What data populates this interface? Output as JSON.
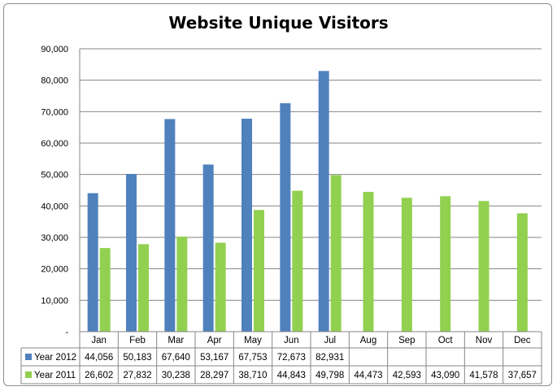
{
  "chart_data": {
    "type": "bar",
    "title": "Website Unique Visitors",
    "xlabel": "",
    "ylabel": "",
    "ylim": [
      0,
      90000
    ],
    "yticks": [
      0,
      10000,
      20000,
      30000,
      40000,
      50000,
      60000,
      70000,
      80000,
      90000
    ],
    "ytick_labels": [
      "-",
      "10,000",
      "20,000",
      "30,000",
      "40,000",
      "50,000",
      "60,000",
      "70,000",
      "80,000",
      "90,000"
    ],
    "grid": true,
    "legend": "data-table",
    "categories": [
      "Jan",
      "Feb",
      "Mar",
      "Apr",
      "May",
      "Jun",
      "Jul",
      "Aug",
      "Sep",
      "Oct",
      "Nov",
      "Dec"
    ],
    "series": [
      {
        "name": "Year 2012",
        "color": "#4f81bd",
        "values": [
          44056,
          50183,
          67640,
          53167,
          67753,
          72673,
          82931,
          null,
          null,
          null,
          null,
          null
        ],
        "labels": [
          "44,056",
          "50,183",
          "67,640",
          "53,167",
          "67,753",
          "72,673",
          "82,931",
          "",
          "",
          "",
          "",
          ""
        ]
      },
      {
        "name": "Year 2011",
        "color": "#92d050",
        "values": [
          26602,
          27832,
          30238,
          28297,
          38710,
          44843,
          49798,
          44473,
          42593,
          43090,
          41578,
          37657
        ],
        "labels": [
          "26,602",
          "27,832",
          "30,238",
          "28,297",
          "38,710",
          "44,843",
          "49,798",
          "44,473",
          "42,593",
          "43,090",
          "41,578",
          "37,657"
        ]
      }
    ]
  }
}
